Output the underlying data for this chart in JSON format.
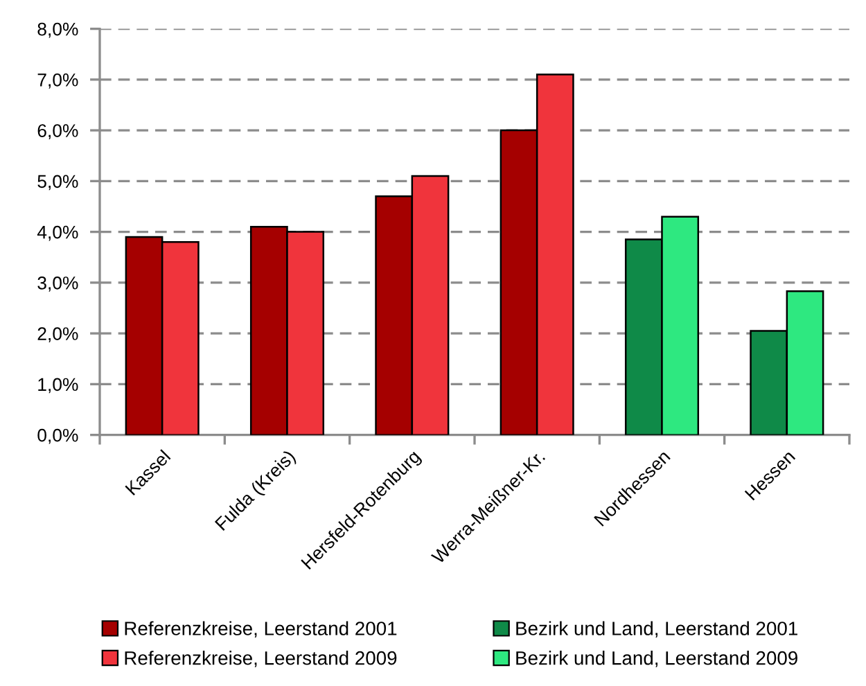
{
  "chart_data": {
    "type": "bar",
    "categories": [
      "Kassel",
      "Fulda (Kreis)",
      "Hersfeld-Rotenburg",
      "Werra-Meißner-Kr.",
      "Nordhessen",
      "Hessen"
    ],
    "series": [
      {
        "name": "Referenzkreise, Leerstand 2001",
        "color": "#a50000",
        "values": [
          3.9,
          4.1,
          4.7,
          6.0,
          null,
          null
        ]
      },
      {
        "name": "Referenzkreise, Leerstand 2009",
        "color": "#f0343c",
        "values": [
          3.8,
          4.0,
          5.1,
          7.1,
          null,
          null
        ]
      },
      {
        "name": "Bezirk und Land, Leerstand 2001",
        "color": "#0f8a48",
        "values": [
          null,
          null,
          null,
          null,
          3.85,
          2.05
        ]
      },
      {
        "name": "Bezirk und Land, Leerstand 2009",
        "color": "#2ee880",
        "values": [
          null,
          null,
          null,
          null,
          4.3,
          2.83
        ]
      }
    ],
    "ylim": [
      0,
      8
    ],
    "yticks": [
      {
        "value": 0,
        "label": "0,0%"
      },
      {
        "value": 1,
        "label": "1,0%"
      },
      {
        "value": 2,
        "label": "2,0%"
      },
      {
        "value": 3,
        "label": "3,0%"
      },
      {
        "value": 4,
        "label": "4,0%"
      },
      {
        "value": 5,
        "label": "5,0%"
      },
      {
        "value": 6,
        "label": "6,0%"
      },
      {
        "value": 7,
        "label": "7,0%"
      },
      {
        "value": 8,
        "label": "8,0%"
      }
    ],
    "grid": "y",
    "legend": "bottom"
  }
}
